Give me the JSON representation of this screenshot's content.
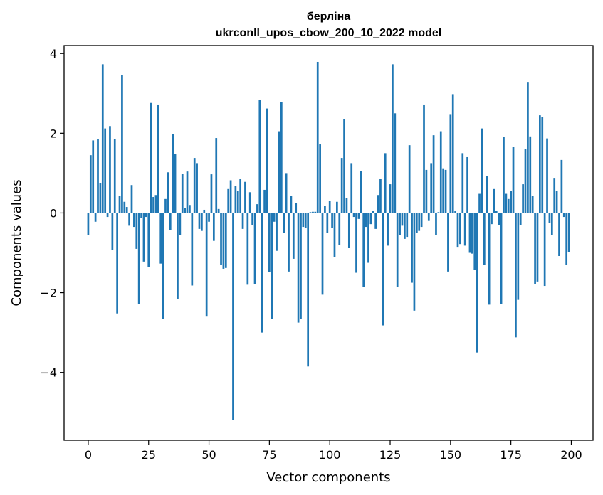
{
  "chart_data": {
    "type": "bar",
    "title": "берліна",
    "subtitle": "ukrconll_upos_cbow_200_10_2022 model",
    "xlabel": "Vector components",
    "ylabel": "Components values",
    "xlim": [
      -10,
      209
    ],
    "ylim": [
      -5.7,
      4.2
    ],
    "xticks": [
      0,
      25,
      50,
      75,
      100,
      125,
      150,
      175,
      200
    ],
    "yticks": [
      -4,
      -2,
      0,
      2,
      4
    ],
    "ytick_labels": [
      "−4",
      "−2",
      "0",
      "2",
      "4"
    ],
    "grid": false,
    "bar_color": "#1f77b4",
    "x": [
      0,
      1,
      2,
      3,
      4,
      5,
      6,
      7,
      8,
      9,
      10,
      11,
      12,
      13,
      14,
      15,
      16,
      17,
      18,
      19,
      20,
      21,
      22,
      23,
      24,
      25,
      26,
      27,
      28,
      29,
      30,
      31,
      32,
      33,
      34,
      35,
      36,
      37,
      38,
      39,
      40,
      41,
      42,
      43,
      44,
      45,
      46,
      47,
      48,
      49,
      50,
      51,
      52,
      53,
      54,
      55,
      56,
      57,
      58,
      59,
      60,
      61,
      62,
      63,
      64,
      65,
      66,
      67,
      68,
      69,
      70,
      71,
      72,
      73,
      74,
      75,
      76,
      77,
      78,
      79,
      80,
      81,
      82,
      83,
      84,
      85,
      86,
      87,
      88,
      89,
      90,
      91,
      92,
      93,
      94,
      95,
      96,
      97,
      98,
      99,
      100,
      101,
      102,
      103,
      104,
      105,
      106,
      107,
      108,
      109,
      110,
      111,
      112,
      113,
      114,
      115,
      116,
      117,
      118,
      119,
      120,
      121,
      122,
      123,
      124,
      125,
      126,
      127,
      128,
      129,
      130,
      131,
      132,
      133,
      134,
      135,
      136,
      137,
      138,
      139,
      140,
      141,
      142,
      143,
      144,
      145,
      146,
      147,
      148,
      149,
      150,
      151,
      152,
      153,
      154,
      155,
      156,
      157,
      158,
      159,
      160,
      161,
      162,
      163,
      164,
      165,
      166,
      167,
      168,
      169,
      170,
      171,
      172,
      173,
      174,
      175,
      176,
      177,
      178,
      179,
      180,
      181,
      182,
      183,
      184,
      185,
      186,
      187,
      188,
      189,
      190,
      191,
      192,
      193,
      194,
      195,
      196,
      197,
      198,
      199
    ],
    "values": [
      -0.55,
      1.45,
      1.82,
      -0.22,
      1.85,
      0.75,
      3.73,
      2.12,
      -0.1,
      2.18,
      -0.92,
      1.85,
      -2.52,
      0.42,
      3.46,
      0.28,
      0.15,
      -0.32,
      0.7,
      -0.35,
      -0.9,
      -2.28,
      -0.12,
      -1.22,
      -0.1,
      -1.35,
      2.76,
      0.4,
      0.45,
      2.72,
      -1.27,
      -2.65,
      0.35,
      1.02,
      -0.42,
      1.98,
      1.48,
      -2.15,
      -0.55,
      0.98,
      0.12,
      1.04,
      0.2,
      -1.82,
      1.38,
      1.25,
      -0.4,
      -0.45,
      0.08,
      -2.6,
      -0.22,
      0.97,
      -0.7,
      1.88,
      0.1,
      -1.3,
      -1.4,
      -1.38,
      0.6,
      0.82,
      -5.2,
      0.68,
      0.55,
      0.85,
      -0.4,
      0.78,
      -1.8,
      0.52,
      -0.3,
      -1.78,
      0.22,
      2.84,
      -3.0,
      0.58,
      2.62,
      -1.48,
      -2.65,
      -0.22,
      -0.95,
      2.05,
      2.78,
      -0.5,
      1.0,
      -1.47,
      0.42,
      -1.15,
      0.25,
      -2.75,
      -2.65,
      -0.35,
      -0.38,
      -3.85,
      0.02,
      0.03,
      0.03,
      3.79,
      1.72,
      -2.05,
      0.18,
      -0.5,
      0.3,
      -0.38,
      -1.1,
      0.28,
      -0.8,
      1.38,
      2.35,
      0.38,
      -0.88,
      1.25,
      -0.1,
      -1.5,
      -0.15,
      1.06,
      -1.85,
      -0.35,
      -1.25,
      -0.28,
      0.05,
      -0.4,
      0.45,
      0.85,
      -2.82,
      1.5,
      -0.82,
      0.72,
      3.73,
      2.5,
      -1.85,
      -0.55,
      -0.32,
      -0.65,
      -0.6,
      1.7,
      -1.75,
      -2.45,
      -0.5,
      -0.45,
      -0.35,
      2.72,
      1.08,
      -0.2,
      1.25,
      1.95,
      -0.55,
      0.02,
      2.05,
      1.12,
      1.08,
      -1.47,
      2.48,
      2.98,
      0.05,
      -0.85,
      -0.78,
      1.5,
      -0.82,
      1.4,
      -1.0,
      -1.02,
      -1.42,
      -3.5,
      0.48,
      2.12,
      -1.3,
      0.93,
      -2.3,
      -0.28,
      0.6,
      0.05,
      -0.3,
      -2.28,
      1.9,
      0.48,
      0.35,
      0.55,
      1.65,
      -3.12,
      -2.18,
      -0.3,
      0.72,
      1.6,
      3.27,
      1.92,
      0.42,
      -1.78,
      -1.72,
      2.45,
      2.4,
      -1.83,
      1.87,
      -0.25,
      -0.55,
      0.88,
      0.55,
      -1.08,
      1.33,
      -0.1,
      -1.3,
      -0.98
    ]
  }
}
